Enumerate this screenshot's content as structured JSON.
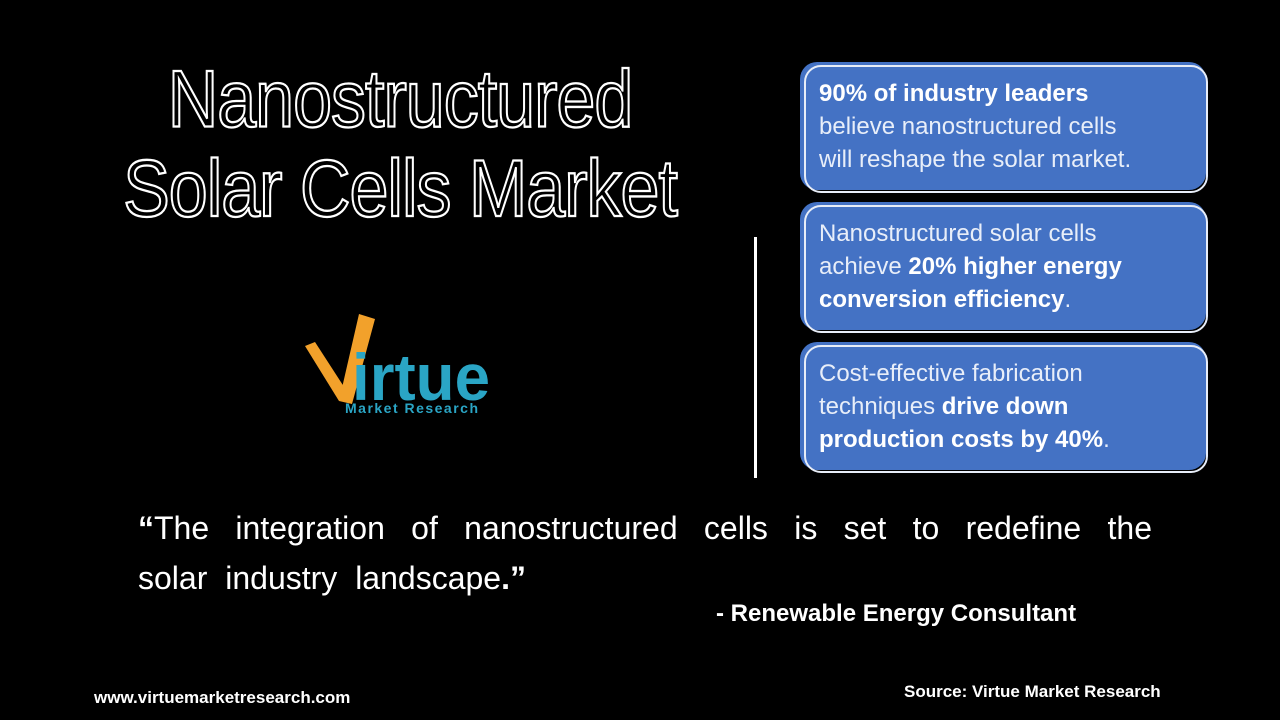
{
  "slide": {
    "colors": {
      "background": "#000000",
      "card_blue": "#4472C4",
      "card_border": "#E7EDF8",
      "text_white": "#FFFFFF",
      "logo_orange": "#F2A12B",
      "logo_teal": "#2AA5C5"
    },
    "title": {
      "line1": "Nanostructured",
      "line2": "Solar Cells Market"
    },
    "logo": {
      "wordmark_tail": "irtue",
      "subtitle": "Market Research"
    },
    "cards": [
      {
        "segments": [
          {
            "text": "90% of industry leaders",
            "bold": true
          },
          {
            "text": "\nbelieve nanostructured cells\nwill reshape the solar market.",
            "bold": false
          }
        ]
      },
      {
        "segments": [
          {
            "text": "Nanostructured solar cells\nachieve ",
            "bold": false
          },
          {
            "text": "20% higher energy\nconversion efficiency",
            "bold": true
          },
          {
            "text": ".",
            "bold": false
          }
        ]
      },
      {
        "segments": [
          {
            "text": "Cost-effective fabrication\ntechniques ",
            "bold": false
          },
          {
            "text": "drive down\nproduction costs by 40%",
            "bold": true
          },
          {
            "text": ".",
            "bold": false
          }
        ]
      }
    ],
    "quote": {
      "open_mark": "“",
      "line1": "The integration of nanostructured cells is set to redefine the",
      "line2": "solar industry landscape",
      "close_mark": ".”",
      "attribution": "- Renewable Energy Consultant"
    },
    "footer": {
      "website": "www.virtuemarketresearch.com",
      "source": "Source: Virtue Market Research"
    }
  }
}
